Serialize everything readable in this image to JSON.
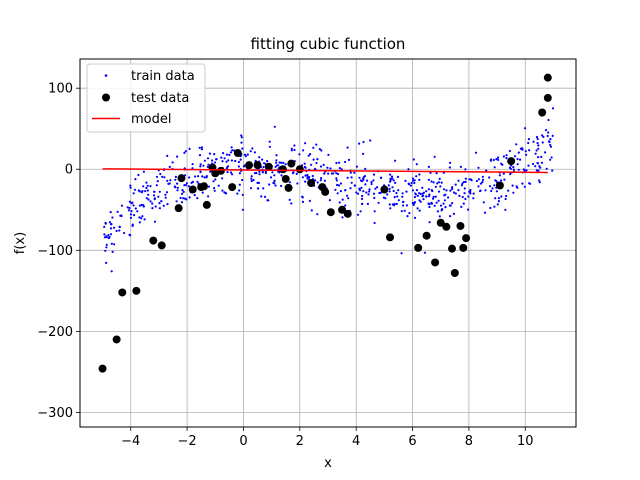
{
  "chart_data": {
    "type": "scatter",
    "title": "fitting cubic function",
    "xlabel": "x",
    "ylabel": "f(x)",
    "xlim": [
      -5.8,
      11.8
    ],
    "ylim": [
      -318,
      136
    ],
    "xticks": [
      -4,
      -2,
      0,
      2,
      4,
      6,
      8,
      10
    ],
    "yticks": [
      -300,
      -200,
      -100,
      0,
      100
    ],
    "grid": true,
    "legend_position": "top-left",
    "series": [
      {
        "name": "train data",
        "kind": "points",
        "color": "#0000ff",
        "underlying_function": "0.25*x^3 - 2.5*x^2 + 0.25*x + 5 plus noise",
        "x_range": [
          -5.0,
          11.0
        ],
        "approx_count": 800
      },
      {
        "name": "test data",
        "kind": "points",
        "color": "#000000",
        "points": [
          [
            -5.0,
            -246
          ],
          [
            -4.5,
            -210
          ],
          [
            -4.3,
            -152
          ],
          [
            -3.8,
            -150
          ],
          [
            -3.2,
            -88
          ],
          [
            -2.9,
            -94
          ],
          [
            -2.3,
            -48
          ],
          [
            -2.2,
            -11
          ],
          [
            -1.8,
            -25
          ],
          [
            -1.5,
            -22
          ],
          [
            -1.4,
            -21
          ],
          [
            -1.3,
            -44
          ],
          [
            -1.1,
            2
          ],
          [
            -1.0,
            -5
          ],
          [
            -0.8,
            -2
          ],
          [
            -0.4,
            -22
          ],
          [
            -0.2,
            20
          ],
          [
            0.2,
            5
          ],
          [
            0.5,
            5
          ],
          [
            0.9,
            3
          ],
          [
            1.4,
            0
          ],
          [
            1.5,
            -12
          ],
          [
            1.6,
            -23
          ],
          [
            1.7,
            7
          ],
          [
            2.0,
            0
          ],
          [
            2.4,
            -17
          ],
          [
            2.8,
            -22
          ],
          [
            2.9,
            -28
          ],
          [
            3.1,
            -53
          ],
          [
            3.5,
            -50
          ],
          [
            3.7,
            -55
          ],
          [
            5.0,
            -25
          ],
          [
            5.2,
            -84
          ],
          [
            6.2,
            -97
          ],
          [
            6.5,
            -82
          ],
          [
            6.8,
            -115
          ],
          [
            7.0,
            -66
          ],
          [
            7.2,
            -71
          ],
          [
            7.4,
            -98
          ],
          [
            7.5,
            -128
          ],
          [
            7.7,
            -70
          ],
          [
            7.8,
            -97
          ],
          [
            7.9,
            -85
          ],
          [
            9.1,
            -20
          ],
          [
            9.5,
            10
          ],
          [
            10.6,
            70
          ],
          [
            10.8,
            88
          ],
          [
            10.8,
            113
          ]
        ]
      },
      {
        "name": "model",
        "kind": "line",
        "color": "#ff0000",
        "points": [
          [
            -5.0,
            0.5
          ],
          [
            10.8,
            -4.0
          ]
        ]
      }
    ]
  }
}
